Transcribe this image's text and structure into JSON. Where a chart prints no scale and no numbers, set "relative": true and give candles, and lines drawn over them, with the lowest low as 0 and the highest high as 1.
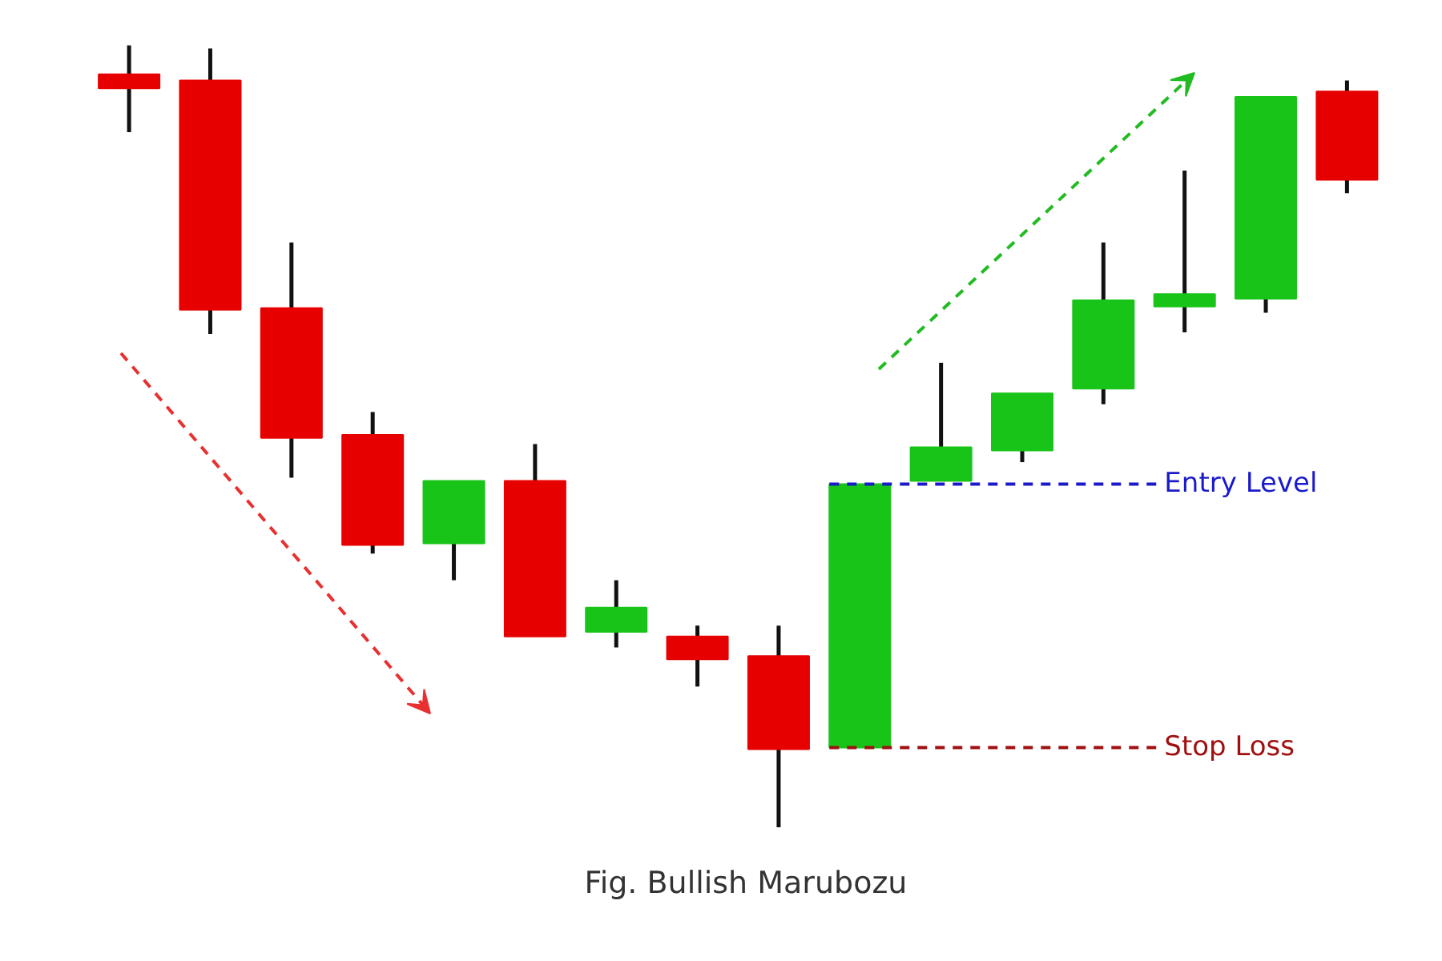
{
  "chart_data": {
    "type": "candlestick",
    "title": "Fig. Bullish Marubozu",
    "relative": true,
    "categories": [
      null,
      null,
      null,
      null,
      null,
      null,
      null,
      null,
      null,
      null,
      null,
      null,
      null,
      null,
      null,
      null
    ],
    "ohlc": [
      [
        0.963,
        1.0,
        0.889,
        0.945
      ],
      [
        0.955,
        0.996,
        0.631,
        0.662
      ],
      [
        0.664,
        0.748,
        0.447,
        0.498
      ],
      [
        0.502,
        0.531,
        0.35,
        0.361
      ],
      [
        0.363,
        0.443,
        0.316,
        0.443
      ],
      [
        0.443,
        0.49,
        0.244,
        0.244
      ],
      [
        0.25,
        0.316,
        0.23,
        0.281
      ],
      [
        0.244,
        0.258,
        0.18,
        0.215
      ],
      [
        0.219,
        0.258,
        0.0,
        0.1
      ],
      [
        0.102,
        0.439,
        0.102,
        0.439
      ],
      [
        0.443,
        0.594,
        0.443,
        0.486
      ],
      [
        0.482,
        0.555,
        0.467,
        0.555
      ],
      [
        0.561,
        0.748,
        0.541,
        0.674
      ],
      [
        0.666,
        0.84,
        0.633,
        0.682
      ],
      [
        0.676,
        0.934,
        0.658,
        0.934
      ],
      [
        0.941,
        0.955,
        0.811,
        0.828
      ]
    ],
    "colors": [
      "#e60000",
      "#e60000",
      "#e60000",
      "#e60000",
      "#18c418",
      "#e60000",
      "#18c418",
      "#e60000",
      "#e60000",
      "#18c418",
      "#18c418",
      "#18c418",
      "#18c418",
      "#18c418",
      "#18c418",
      "#e60000"
    ],
    "ref_lines": [
      {
        "axis": "y",
        "value": 0.439,
        "label": "Entry Level",
        "color": "#1a1acc",
        "line_style": "dashed"
      },
      {
        "axis": "y",
        "value": 0.102,
        "label": "Stop Loss",
        "color": "#a01010",
        "line_style": "dashed"
      }
    ],
    "grid": false
  }
}
